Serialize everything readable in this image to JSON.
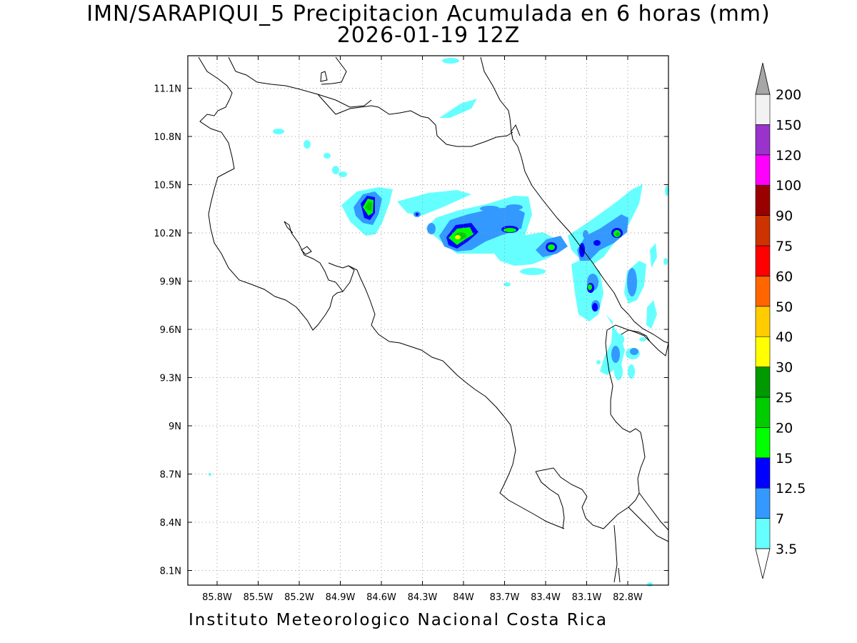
{
  "title_line1": "IMN/SARAPIQUI_5 Precipitacion Acumulada en 6 horas (mm)",
  "title_line2": "2026-01-19 12Z",
  "footer": "Instituto Meteorologico Nacional Costa Rica",
  "map": {
    "lon_range": [
      -86.0,
      -82.6
    ],
    "lat_range": [
      8.0,
      11.3
    ],
    "lon_ticks": [
      "85.8W",
      "85.5W",
      "85.2W",
      "84.9W",
      "84.6W",
      "84.3W",
      "84W",
      "83.7W",
      "83.4W",
      "83.1W",
      "82.8W"
    ],
    "lon_tick_values": [
      -85.8,
      -85.5,
      -85.2,
      -84.9,
      -84.6,
      -84.3,
      -84.0,
      -83.7,
      -83.4,
      -83.1,
      -82.8
    ],
    "lat_ticks": [
      "8.1N",
      "8.4N",
      "8.7N",
      "9N",
      "9.3N",
      "9.6N",
      "9.9N",
      "10.2N",
      "10.5N",
      "10.8N",
      "11.1N"
    ],
    "lat_tick_values": [
      8.1,
      8.4,
      8.7,
      9.0,
      9.3,
      9.6,
      9.9,
      10.2,
      10.5,
      10.8,
      11.1
    ],
    "grid": "dotted"
  },
  "colorbar": {
    "labels": [
      "3.5",
      "7",
      "12.5",
      "15",
      "20",
      "25",
      "30",
      "40",
      "50",
      "60",
      "75",
      "90",
      "100",
      "120",
      "150",
      "200"
    ],
    "colors": [
      "#66ffff",
      "#3399ff",
      "#0000ff",
      "#00ff00",
      "#00cc00",
      "#009900",
      "#ffff00",
      "#ffcc00",
      "#ff6600",
      "#ff0000",
      "#cc3300",
      "#990000",
      "#ff00ff",
      "#9933cc",
      "#f2f2f2",
      "#999999"
    ],
    "under_color": "#ffffff",
    "over_color": "#a6a6a6"
  }
}
